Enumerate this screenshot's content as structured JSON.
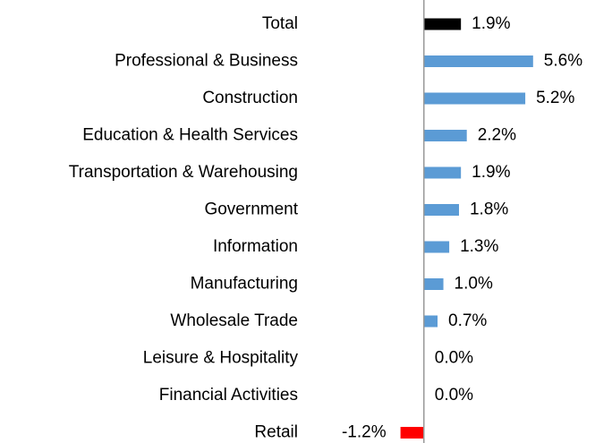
{
  "chart_data": {
    "type": "hbar",
    "categories": [
      "Total",
      "Professional & Business",
      "Construction",
      "Education & Health Services",
      "Transportation & Warehousing",
      "Government",
      "Information",
      "Manufacturing",
      "Wholesale Trade",
      "Leisure & Hospitality",
      "Financial Activities",
      "Retail"
    ],
    "values": [
      1.9,
      5.6,
      5.2,
      2.2,
      1.9,
      1.8,
      1.3,
      1.0,
      0.7,
      0.0,
      0.0,
      -1.2
    ],
    "value_labels": [
      "1.9%",
      "5.6%",
      "5.2%",
      "2.2%",
      "1.9%",
      "1.8%",
      "1.3%",
      "1.0%",
      "0.7%",
      "0.0%",
      "0.0%",
      "-1.2%"
    ],
    "colors": [
      "#000000",
      "#5b9bd5",
      "#5b9bd5",
      "#5b9bd5",
      "#5b9bd5",
      "#5b9bd5",
      "#5b9bd5",
      "#5b9bd5",
      "#5b9bd5",
      "#5b9bd5",
      "#5b9bd5",
      "#ff0000"
    ],
    "xlim": [
      -6,
      8.5
    ]
  }
}
